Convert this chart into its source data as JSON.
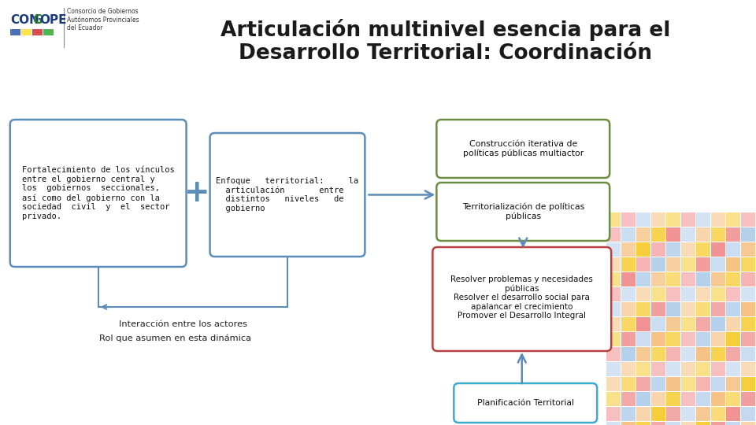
{
  "title_line1": "Articulación multinivel esencia para el",
  "title_line2": "Desarrollo Territorial: Coordinación",
  "title_fontsize": 19,
  "bg_color": "#ffffff",
  "box1_text": "Fortalecimiento de los vínculos\nentre el gobierno central y\nlos  gobiernos  seccionales,\nasí como del gobierno con la\nsociedad  civil  y  el  sector\nprivado.",
  "box1_color": "#5B8DB8",
  "box1_bg": "#ffffff",
  "box2_text": "Enfoque   territorial:     la\n  articulación       entre\n  distintos   niveles   de\n  gobierno",
  "box2_color": "#5B8DB8",
  "box2_bg": "#ffffff",
  "box3a_text": "Construcción iterativa de\npolíticas públicas multiactor",
  "box3a_color": "#6B8E3E",
  "box3a_bg": "#ffffff",
  "box3b_text": "Territorialización de políticas\npúblicas",
  "box3b_color": "#6B8E3E",
  "box3b_bg": "#ffffff",
  "box4_text": "Resolver problemas y necesidades\npúblicas\nResolver el desarrollo social para\napalancar el crecimiento\nPromover el Desarrollo Integral",
  "box4_color": "#B84040",
  "box4_bg": "#ffffff",
  "box5_text": "Planificación Territorial",
  "box5_color": "#3AACCC",
  "box5_bg": "#ffffff",
  "arrow_color": "#5B8DB8",
  "plus_color": "#5B8DB8",
  "connector_color": "#5B8DB8",
  "label_interaccion": "Interacción entre los actores",
  "label_rol": "Rol que asumen en esta dinámica",
  "mosaic_colors": [
    "#F5C842",
    "#F08080",
    "#90B8E0",
    "#F5A84A",
    "#F0E080",
    "#E09090"
  ],
  "text_fontsize": 7.8,
  "small_fontsize": 7.5,
  "mono_fontsize": 7.5
}
